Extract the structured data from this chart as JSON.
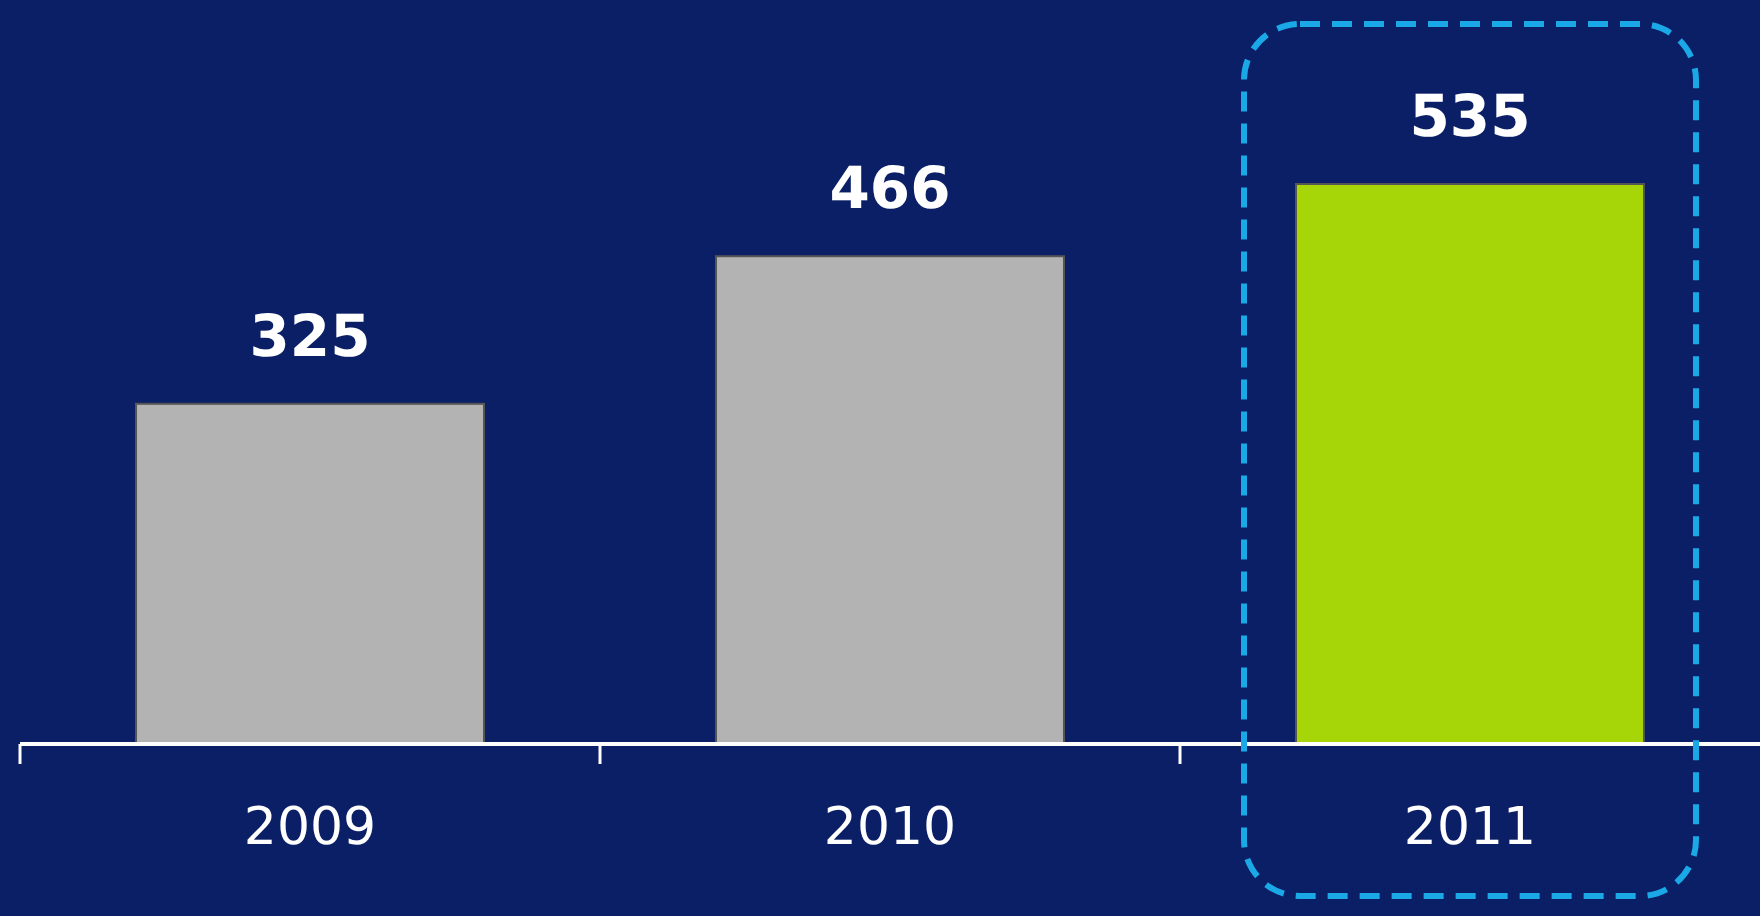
{
  "chart_data": {
    "type": "bar",
    "categories": [
      "2009",
      "2010",
      "2011"
    ],
    "values": [
      325,
      466,
      535
    ],
    "colors": [
      "#b3b3b3",
      "#b3b3b3",
      "#a6d608"
    ],
    "data_labels": true
  }
}
